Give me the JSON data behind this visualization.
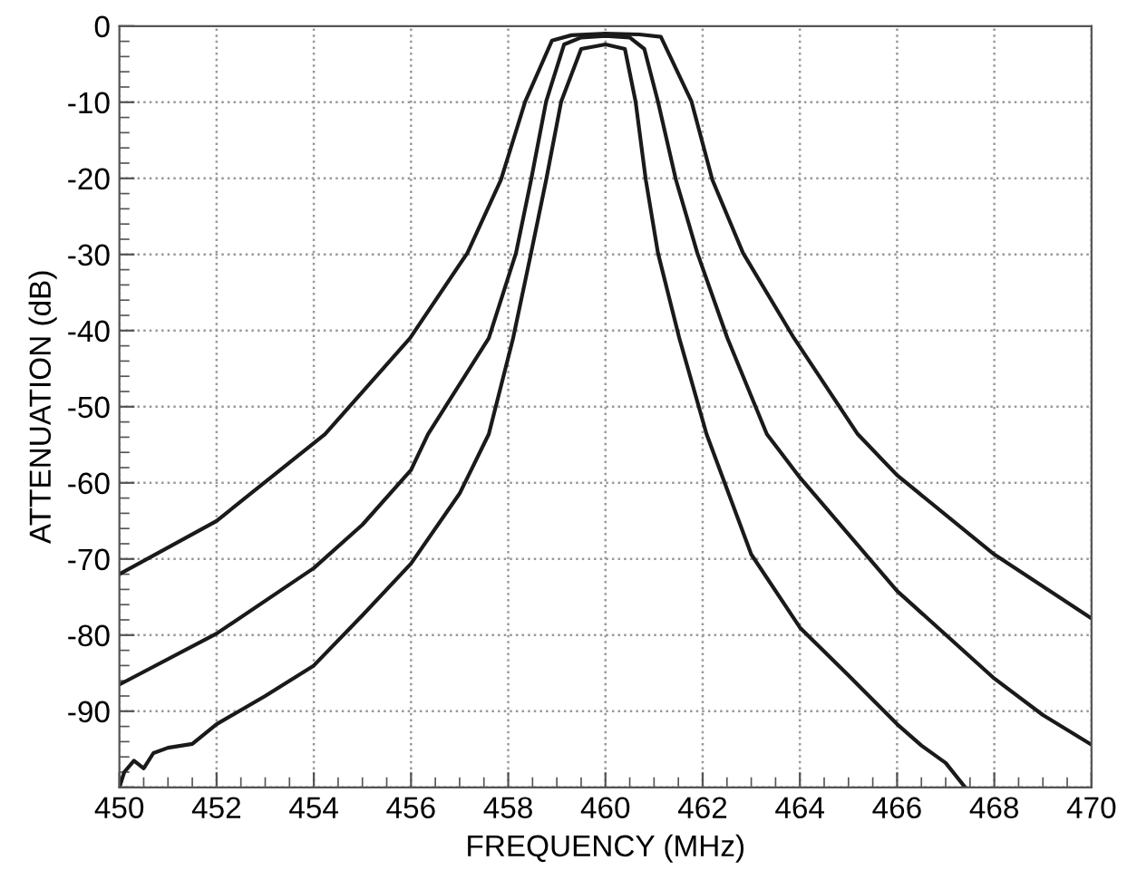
{
  "chart_data": {
    "type": "line",
    "xlabel": "FREQUENCY (MHz)",
    "ylabel": "ATTENUATION (dB)",
    "xlim": [
      450,
      470
    ],
    "ylim": [
      -100,
      0
    ],
    "xticks": [
      450,
      452,
      454,
      456,
      458,
      460,
      462,
      464,
      466,
      468,
      470
    ],
    "yticks": [
      {
        "value": -100,
        "label": null
      },
      -90,
      -80,
      -70,
      -60,
      -50,
      -40,
      -30,
      -20,
      -10,
      0
    ],
    "grid": true,
    "marker": "none",
    "line_style": "solid",
    "series": [
      {
        "color": "#1a1a1a",
        "x": [
          450,
          452,
          454.23,
          455.98,
          457.16,
          457.85,
          458.35,
          458.9,
          459.3,
          460,
          460.7,
          461.14,
          461.77,
          462.2,
          462.83,
          463.88,
          465.19,
          466,
          468,
          470
        ],
        "values": [
          -72,
          -65,
          -53.6,
          -41,
          -29.8,
          -20.2,
          -9.9,
          -1.9,
          -1.2,
          -1,
          -1.1,
          -1.4,
          -9.9,
          -20.2,
          -29.8,
          -41,
          -53.6,
          -59,
          -69.4,
          -77.8
        ]
      },
      {
        "color": "#1a1a1a",
        "x": [
          450,
          452,
          454,
          455,
          456,
          456.35,
          457.6,
          458.16,
          458.47,
          458.78,
          459.15,
          459.5,
          460,
          460.5,
          460.8,
          461.08,
          461.45,
          461.89,
          462.51,
          463.32,
          464,
          466,
          468,
          469,
          470
        ],
        "values": [
          -86.5,
          -79.8,
          -71.2,
          -65.5,
          -58.3,
          -53.6,
          -41,
          -29.8,
          -20.2,
          -9.9,
          -2.4,
          -1.5,
          -1.3,
          -1.5,
          -3,
          -9.9,
          -20.2,
          -29.8,
          -41,
          -53.6,
          -59.3,
          -74.2,
          -85.7,
          -90.5,
          -94.4
        ]
      },
      {
        "color": "#1a1a1a",
        "x": [
          450,
          450.1,
          450.3,
          450.5,
          450.7,
          451,
          451.5,
          452,
          453,
          454,
          455,
          456,
          457,
          457.6,
          458.1,
          458.47,
          458.78,
          459.09,
          459.5,
          460,
          460.4,
          460.62,
          460.83,
          461.08,
          461.52,
          462.08,
          463,
          464,
          465,
          466,
          466.5,
          467,
          467.4
        ],
        "values": [
          -100,
          -98,
          -96.5,
          -97.5,
          -95.5,
          -94.8,
          -94.3,
          -91.7,
          -88,
          -84,
          -77.4,
          -70.6,
          -61.4,
          -53.6,
          -41,
          -29.8,
          -20.2,
          -9.9,
          -3,
          -2.4,
          -3,
          -9.9,
          -20.2,
          -29.8,
          -41,
          -53.6,
          -69.4,
          -79,
          -85.3,
          -91.7,
          -94.5,
          -96.8,
          -100
        ]
      }
    ]
  }
}
